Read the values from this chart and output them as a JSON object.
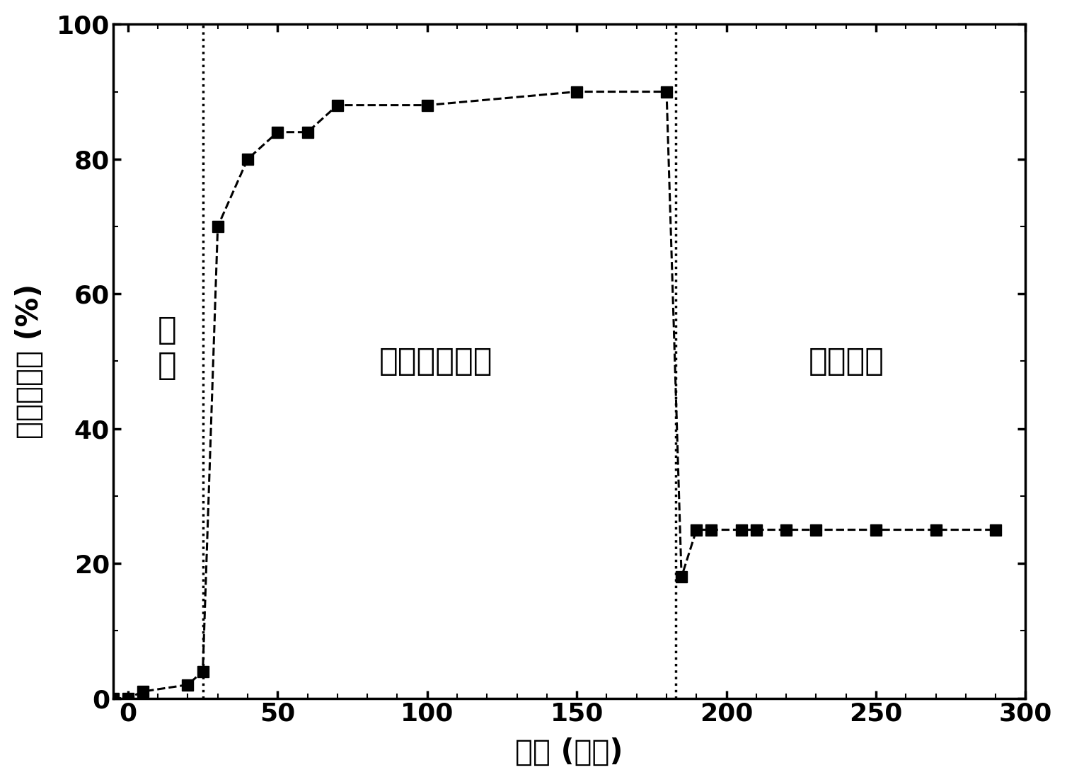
{
  "x": [
    -5,
    0,
    5,
    20,
    25,
    30,
    40,
    50,
    60,
    70,
    100,
    150,
    180,
    185,
    190,
    195,
    205,
    210,
    220,
    230,
    250,
    270,
    290
  ],
  "y": [
    0,
    0,
    1,
    2,
    4,
    70,
    80,
    84,
    84,
    88,
    88,
    90,
    90,
    18,
    25,
    25,
    25,
    25,
    25,
    25,
    25,
    25,
    25
  ],
  "vline1_x": 25,
  "vline2_x": 183,
  "xlabel": "时间 (分钟)",
  "ylabel": "乙烯降解率 (%)",
  "label_dark": "暗\n态",
  "label_solar": "模拟太阳光照",
  "label_visible": "可见光照",
  "dark_x": 13,
  "dark_y": 52,
  "solar_x": 103,
  "solar_y": 50,
  "visible_x": 240,
  "visible_y": 50,
  "xlim": [
    -5,
    300
  ],
  "ylim": [
    0,
    100
  ],
  "xticks": [
    0,
    50,
    100,
    150,
    200,
    250,
    300
  ],
  "yticks": [
    0,
    20,
    40,
    60,
    80,
    100
  ],
  "line_color": "#000000",
  "marker": "s",
  "marker_size": 11,
  "line_width": 2.2,
  "fontsize_label": 30,
  "fontsize_tick": 26,
  "fontsize_annot": 32,
  "background_color": "#ffffff",
  "minor_tick_interval": 10
}
